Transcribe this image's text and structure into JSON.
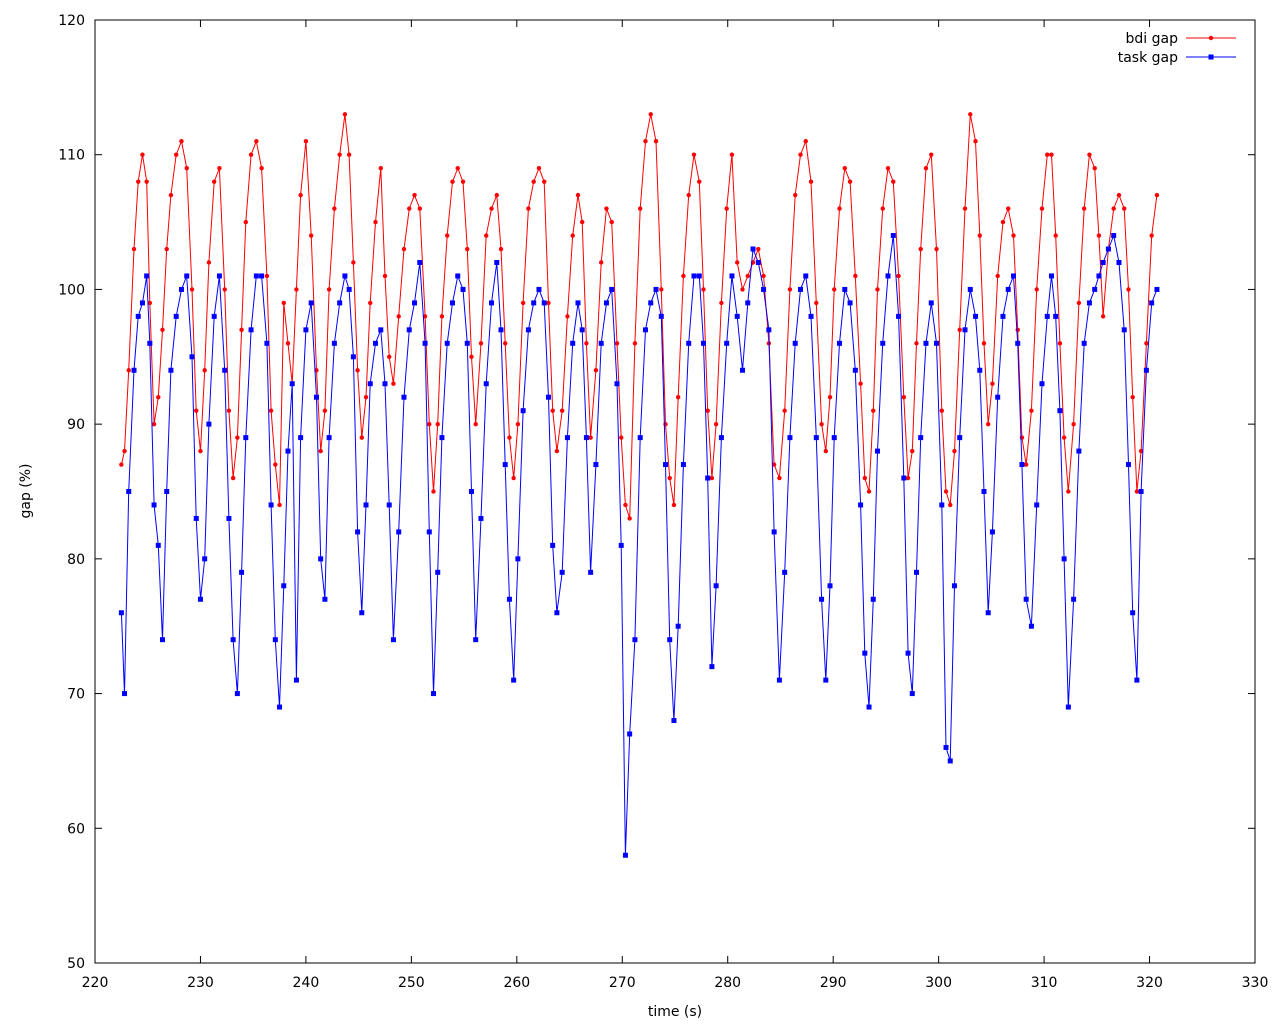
{
  "chart_data": {
    "type": "line",
    "title": "",
    "xlabel": "time (s)",
    "ylabel": "gap (%)",
    "xlim": [
      220,
      330
    ],
    "ylim": [
      50,
      120
    ],
    "xticks": [
      220,
      230,
      240,
      250,
      260,
      270,
      280,
      290,
      300,
      310,
      320,
      330
    ],
    "yticks": [
      50,
      60,
      70,
      80,
      90,
      100,
      110,
      120
    ],
    "grid": false,
    "legend_position": "top-right",
    "series": [
      {
        "name": "bdi gap",
        "color": "#ff0000",
        "marker": "circle",
        "x": [
          222.5,
          222.8,
          223.2,
          223.7,
          224.1,
          224.5,
          224.9,
          225.2,
          225.6,
          226.0,
          226.4,
          226.8,
          227.2,
          227.7,
          228.2,
          228.7,
          229.2,
          229.6,
          230.0,
          230.4,
          230.8,
          231.3,
          231.8,
          232.3,
          232.7,
          233.1,
          233.5,
          233.9,
          234.3,
          234.8,
          235.3,
          235.8,
          236.3,
          236.7,
          237.1,
          237.5,
          237.9,
          238.3,
          238.7,
          239.1,
          239.5,
          240.0,
          240.5,
          241.0,
          241.4,
          241.8,
          242.2,
          242.7,
          243.2,
          243.7,
          244.1,
          244.5,
          244.9,
          245.3,
          245.7,
          246.1,
          246.6,
          247.1,
          247.5,
          247.9,
          248.3,
          248.8,
          249.3,
          249.8,
          250.3,
          250.8,
          251.3,
          251.7,
          252.1,
          252.5,
          252.9,
          253.4,
          253.9,
          254.4,
          254.9,
          255.3,
          255.7,
          256.1,
          256.6,
          257.1,
          257.6,
          258.1,
          258.5,
          258.9,
          259.3,
          259.7,
          260.1,
          260.6,
          261.1,
          261.6,
          262.1,
          262.6,
          263.0,
          263.4,
          263.8,
          264.3,
          264.8,
          265.3,
          265.8,
          266.2,
          266.6,
          267.0,
          267.5,
          268.0,
          268.5,
          269.0,
          269.5,
          269.9,
          270.3,
          270.7,
          271.2,
          271.7,
          272.2,
          272.7,
          273.2,
          273.7,
          274.1,
          274.5,
          274.9,
          275.3,
          275.8,
          276.3,
          276.8,
          277.3,
          277.7,
          278.1,
          278.5,
          278.9,
          279.4,
          279.9,
          280.4,
          280.9,
          281.4,
          281.9,
          282.4,
          282.9,
          283.4,
          283.9,
          284.4,
          284.9,
          285.4,
          285.9,
          286.4,
          286.9,
          287.4,
          287.9,
          288.4,
          288.9,
          289.3,
          289.7,
          290.1,
          290.6,
          291.1,
          291.6,
          292.1,
          292.6,
          293.0,
          293.4,
          293.8,
          294.2,
          294.7,
          295.2,
          295.7,
          296.2,
          296.7,
          297.1,
          297.5,
          297.9,
          298.3,
          298.8,
          299.3,
          299.8,
          300.3,
          300.7,
          301.1,
          301.5,
          302.0,
          302.5,
          303.0,
          303.5,
          303.9,
          304.3,
          304.7,
          305.1,
          305.6,
          306.1,
          306.6,
          307.1,
          307.5,
          307.9,
          308.3,
          308.8,
          309.3,
          309.8,
          310.3,
          310.7,
          311.1,
          311.5,
          311.9,
          312.3,
          312.8,
          313.3,
          313.8,
          314.3,
          314.8,
          315.2,
          315.6,
          316.1,
          316.6,
          317.1,
          317.6,
          318.0,
          318.4,
          318.8,
          319.2,
          319.7,
          320.2,
          320.7
        ],
        "y": [
          87,
          88,
          94,
          103,
          108,
          110,
          108,
          99,
          90,
          92,
          97,
          103,
          107,
          110,
          111,
          109,
          100,
          91,
          88,
          94,
          102,
          108,
          109,
          100,
          91,
          86,
          89,
          97,
          105,
          110,
          111,
          109,
          101,
          91,
          87,
          84,
          99,
          96,
          93,
          100,
          107,
          111,
          104,
          94,
          88,
          91,
          100,
          106,
          110,
          113,
          110,
          102,
          94,
          89,
          92,
          99,
          105,
          109,
          101,
          95,
          93,
          98,
          103,
          106,
          107,
          106,
          98,
          90,
          85,
          90,
          98,
          104,
          108,
          109,
          108,
          103,
          95,
          90,
          96,
          104,
          106,
          107,
          103,
          96,
          89,
          86,
          90,
          99,
          106,
          108,
          109,
          108,
          99,
          91,
          88,
          91,
          98,
          104,
          107,
          105,
          96,
          89,
          94,
          102,
          106,
          105,
          96,
          89,
          84,
          83,
          96,
          106,
          111,
          113,
          111,
          100,
          90,
          86,
          84,
          92,
          101,
          107,
          110,
          108,
          100,
          91,
          86,
          90,
          99,
          106,
          110,
          102,
          100,
          101,
          102,
          103,
          101,
          96,
          87,
          86,
          91,
          100,
          107,
          110,
          111,
          108,
          99,
          90,
          88,
          92,
          100,
          106,
          109,
          108,
          101,
          93,
          86,
          85,
          91,
          100,
          106,
          109,
          108,
          101,
          92,
          86,
          88,
          96,
          103,
          109,
          110,
          103,
          91,
          85,
          84,
          88,
          97,
          106,
          113,
          111,
          104,
          96,
          90,
          93,
          101,
          105,
          106,
          104,
          97,
          89,
          87,
          91,
          100,
          106,
          110,
          110,
          104,
          96,
          89,
          85,
          90,
          99,
          106,
          110,
          109,
          104,
          98,
          103,
          106,
          107,
          106,
          100,
          92,
          85,
          88,
          96,
          104,
          107
        ],
        "values_label": ""
      },
      {
        "name": "task gap",
        "color": "#0000ff",
        "marker": "square",
        "x": [
          222.5,
          222.8,
          223.2,
          223.7,
          224.1,
          224.5,
          224.9,
          225.2,
          225.6,
          226.0,
          226.4,
          226.8,
          227.2,
          227.7,
          228.2,
          228.7,
          229.2,
          229.6,
          230.0,
          230.4,
          230.8,
          231.3,
          231.8,
          232.3,
          232.7,
          233.1,
          233.5,
          233.9,
          234.3,
          234.8,
          235.3,
          235.8,
          236.3,
          236.7,
          237.1,
          237.5,
          237.9,
          238.3,
          238.7,
          239.1,
          239.5,
          240.0,
          240.5,
          241.0,
          241.4,
          241.8,
          242.2,
          242.7,
          243.2,
          243.7,
          244.1,
          244.5,
          244.9,
          245.3,
          245.7,
          246.1,
          246.6,
          247.1,
          247.5,
          247.9,
          248.3,
          248.8,
          249.3,
          249.8,
          250.3,
          250.8,
          251.3,
          251.7,
          252.1,
          252.5,
          252.9,
          253.4,
          253.9,
          254.4,
          254.9,
          255.3,
          255.7,
          256.1,
          256.6,
          257.1,
          257.6,
          258.1,
          258.5,
          258.9,
          259.3,
          259.7,
          260.1,
          260.6,
          261.1,
          261.6,
          262.1,
          262.6,
          263.0,
          263.4,
          263.8,
          264.3,
          264.8,
          265.3,
          265.8,
          266.2,
          266.6,
          267.0,
          267.5,
          268.0,
          268.5,
          269.0,
          269.5,
          269.9,
          270.3,
          270.7,
          271.2,
          271.7,
          272.2,
          272.7,
          273.2,
          273.7,
          274.1,
          274.5,
          274.9,
          275.3,
          275.8,
          276.3,
          276.8,
          277.3,
          277.7,
          278.1,
          278.5,
          278.9,
          279.4,
          279.9,
          280.4,
          280.9,
          281.4,
          281.9,
          282.4,
          282.9,
          283.4,
          283.9,
          284.4,
          284.9,
          285.4,
          285.9,
          286.4,
          286.9,
          287.4,
          287.9,
          288.4,
          288.9,
          289.3,
          289.7,
          290.1,
          290.6,
          291.1,
          291.6,
          292.1,
          292.6,
          293.0,
          293.4,
          293.8,
          294.2,
          294.7,
          295.2,
          295.7,
          296.2,
          296.7,
          297.1,
          297.5,
          297.9,
          298.3,
          298.8,
          299.3,
          299.8,
          300.3,
          300.7,
          301.1,
          301.5,
          302.0,
          302.5,
          303.0,
          303.5,
          303.9,
          304.3,
          304.7,
          305.1,
          305.6,
          306.1,
          306.6,
          307.1,
          307.5,
          307.9,
          308.3,
          308.8,
          309.3,
          309.8,
          310.3,
          310.7,
          311.1,
          311.5,
          311.9,
          312.3,
          312.8,
          313.3,
          313.8,
          314.3,
          314.8,
          315.2,
          315.6,
          316.1,
          316.6,
          317.1,
          317.6,
          318.0,
          318.4,
          318.8,
          319.2,
          319.7,
          320.2,
          320.7
        ],
        "y": [
          76,
          70,
          85,
          94,
          98,
          99,
          101,
          96,
          84,
          81,
          74,
          85,
          94,
          98,
          100,
          101,
          95,
          83,
          77,
          80,
          90,
          98,
          101,
          94,
          83,
          74,
          70,
          79,
          89,
          97,
          101,
          101,
          96,
          84,
          74,
          69,
          78,
          88,
          93,
          71,
          89,
          97,
          99,
          92,
          80,
          77,
          89,
          96,
          99,
          101,
          100,
          95,
          82,
          76,
          84,
          93,
          96,
          97,
          93,
          84,
          74,
          82,
          92,
          97,
          99,
          102,
          96,
          82,
          70,
          79,
          89,
          96,
          99,
          101,
          100,
          96,
          85,
          74,
          83,
          93,
          99,
          102,
          97,
          87,
          77,
          71,
          80,
          91,
          97,
          99,
          100,
          99,
          92,
          81,
          76,
          79,
          89,
          96,
          99,
          97,
          89,
          79,
          87,
          96,
          99,
          100,
          93,
          81,
          58,
          67,
          74,
          89,
          97,
          99,
          100,
          98,
          87,
          74,
          68,
          75,
          87,
          96,
          101,
          101,
          96,
          86,
          72,
          78,
          89,
          96,
          101,
          98,
          94,
          99,
          103,
          102,
          100,
          97,
          82,
          71,
          79,
          89,
          96,
          100,
          101,
          98,
          89,
          77,
          71,
          78,
          89,
          96,
          100,
          99,
          94,
          84,
          73,
          69,
          77,
          88,
          96,
          101,
          104,
          98,
          86,
          73,
          70,
          79,
          89,
          96,
          99,
          96,
          84,
          66,
          65,
          78,
          89,
          97,
          100,
          98,
          94,
          85,
          76,
          82,
          92,
          98,
          100,
          101,
          96,
          87,
          77,
          75,
          84,
          93,
          98,
          101,
          98,
          91,
          80,
          69,
          77,
          88,
          96,
          99,
          100,
          101,
          102,
          103,
          104,
          102,
          97,
          87,
          76,
          71,
          85,
          94,
          99,
          100
        ]
      }
    ]
  }
}
